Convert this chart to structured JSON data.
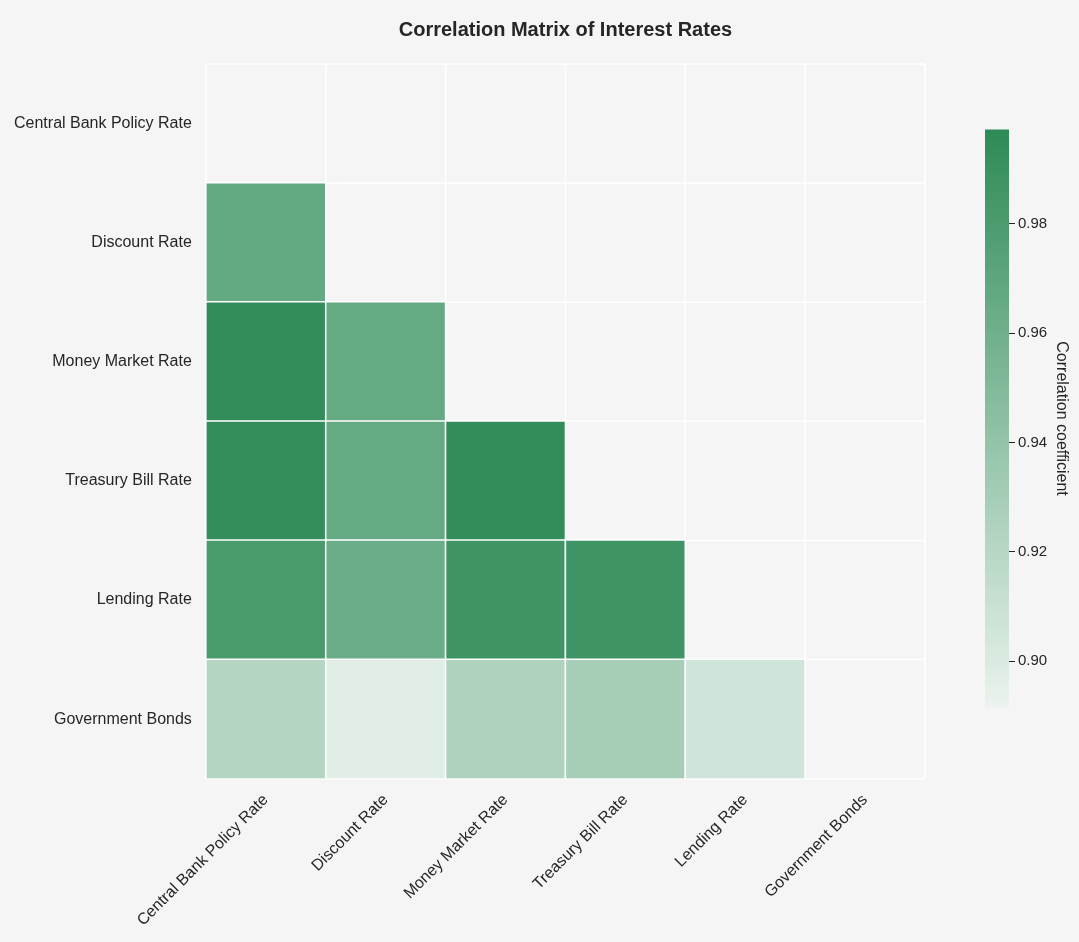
{
  "chart_data": {
    "type": "heatmap",
    "title": "Correlation Matrix of Interest Rates",
    "categories": [
      "Central Bank Policy Rate",
      "Discount Rate",
      "Money Market Rate",
      "Treasury Bill Rate",
      "Lending Rate",
      "Government Bonds"
    ],
    "y_categories": [
      "Central Bank Policy Rate",
      "Discount Rate",
      "Money Market Rate",
      "Treasury Bill Rate",
      "Lending Rate",
      "Government Bonds"
    ],
    "cells": [
      [
        null,
        null,
        null,
        null,
        null,
        null
      ],
      [
        0.967,
        null,
        null,
        null,
        null,
        null
      ],
      [
        0.995,
        0.966,
        null,
        null,
        null,
        null
      ],
      [
        0.994,
        0.966,
        0.995,
        null,
        null,
        null
      ],
      [
        0.982,
        0.963,
        0.988,
        0.988,
        null,
        null
      ],
      [
        0.922,
        0.897,
        0.925,
        0.93,
        0.906,
        null
      ]
    ],
    "clim": [
      0.8916,
      0.9972
    ],
    "cticks": [
      {
        "value": 0.9,
        "label": "0.90"
      },
      0.92,
      0.94,
      0.96,
      0.98
    ],
    "clabel": "Correlation coefficient",
    "grid": true
  }
}
